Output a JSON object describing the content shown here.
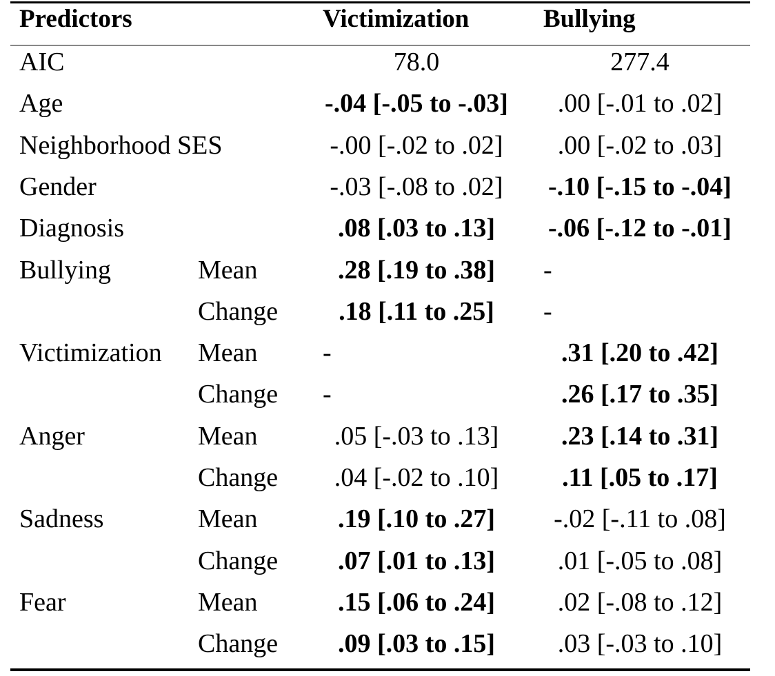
{
  "table": {
    "headers": {
      "predictors": "Predictors",
      "victimization": "Victimization",
      "bullying": "Bullying"
    },
    "rows": [
      {
        "predictor": "AIC",
        "sub": "",
        "victimization": "78.0",
        "vic_bold": false,
        "bullying": "277.4",
        "bul_bold": false
      },
      {
        "predictor": "Age",
        "sub": "",
        "victimization": "-.04 [-.05 to -.03]",
        "vic_bold": true,
        "bullying": ".00 [-.01 to .02]",
        "bul_bold": false
      },
      {
        "predictor": "Neighborhood SES",
        "sub": "",
        "victimization": "-.00 [-.02 to .02]",
        "vic_bold": false,
        "bullying": ".00 [-.02 to .03]",
        "bul_bold": false
      },
      {
        "predictor": "Gender",
        "sub": "",
        "victimization": "-.03 [-.08 to .02]",
        "vic_bold": false,
        "bullying": "-.10 [-.15 to -.04]",
        "bul_bold": true
      },
      {
        "predictor": "Diagnosis",
        "sub": "",
        "victimization": ".08 [.03 to .13]",
        "vic_bold": true,
        "bullying": "-.06 [-.12 to -.01]",
        "bul_bold": true
      },
      {
        "predictor": "Bullying",
        "sub": "Mean",
        "victimization": ".28 [.19 to .38]",
        "vic_bold": true,
        "bullying": "-",
        "bul_bold": false
      },
      {
        "predictor": "",
        "sub": "Change",
        "victimization": ".18 [.11 to .25]",
        "vic_bold": true,
        "bullying": "-",
        "bul_bold": false
      },
      {
        "predictor": "Victimization",
        "sub": "Mean",
        "victimization": "-",
        "vic_bold": false,
        "bullying": ".31 [.20 to .42]",
        "bul_bold": true
      },
      {
        "predictor": "",
        "sub": "Change",
        "victimization": "-",
        "vic_bold": false,
        "bullying": ".26 [.17 to .35]",
        "bul_bold": true
      },
      {
        "predictor": "Anger",
        "sub": "Mean",
        "victimization": ".05 [-.03 to .13]",
        "vic_bold": false,
        "bullying": ".23 [.14 to .31]",
        "bul_bold": true
      },
      {
        "predictor": "",
        "sub": "Change",
        "victimization": ".04 [-.02 to .10]",
        "vic_bold": false,
        "bullying": ".11 [.05 to .17]",
        "bul_bold": true
      },
      {
        "predictor": "Sadness",
        "sub": "Mean",
        "victimization": ".19 [.10 to .27]",
        "vic_bold": true,
        "bullying": "-.02 [-.11 to .08]",
        "bul_bold": false
      },
      {
        "predictor": "",
        "sub": "Change",
        "victimization": ".07 [.01 to .13]",
        "vic_bold": true,
        "bullying": ".01 [-.05 to .08]",
        "bul_bold": false
      },
      {
        "predictor": "Fear",
        "sub": "Mean",
        "victimization": ".15 [.06 to .24]",
        "vic_bold": true,
        "bullying": ".02 [-.08 to .12]",
        "bul_bold": false
      },
      {
        "predictor": "",
        "sub": "Change",
        "victimization": ".09 [.03 to .15]",
        "vic_bold": true,
        "bullying": ".03 [-.03 to .10]",
        "bul_bold": false
      }
    ]
  }
}
